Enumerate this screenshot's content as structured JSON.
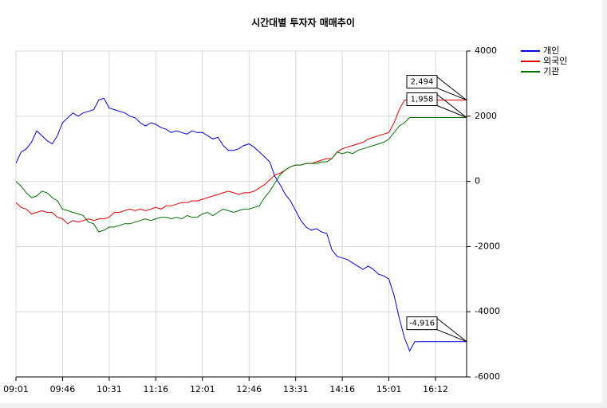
{
  "chart_data": {
    "type": "line",
    "title": "시간대별 투자자 매매추이",
    "xlim": [
      0,
      87
    ],
    "xticks": [
      {
        "value": 0,
        "label": "09:01"
      },
      {
        "value": 9,
        "label": "09:46"
      },
      {
        "value": 18,
        "label": "10:31"
      },
      {
        "value": 27,
        "label": "11:16"
      },
      {
        "value": 36,
        "label": "12:01"
      },
      {
        "value": 45,
        "label": "12:46"
      },
      {
        "value": 54,
        "label": "13:31"
      },
      {
        "value": 63,
        "label": "14:16"
      },
      {
        "value": 72,
        "label": "15:01"
      },
      {
        "value": 81,
        "label": "16:12"
      }
    ],
    "ylim": [
      -6000,
      4000
    ],
    "yticks": [
      -6000,
      -4000,
      -2000,
      0,
      2000,
      4000
    ],
    "grid": true,
    "legend": "top-right",
    "series": [
      {
        "name": "개인",
        "color": "#0000e0",
        "end_label": "-4,916",
        "values": [
          560,
          900,
          1000,
          1200,
          1550,
          1400,
          1250,
          1150,
          1400,
          1800,
          1950,
          2100,
          2000,
          2100,
          2150,
          2200,
          2500,
          2550,
          2250,
          2200,
          2150,
          2100,
          2000,
          1950,
          1800,
          1700,
          1800,
          1750,
          1650,
          1600,
          1500,
          1550,
          1500,
          1450,
          1550,
          1500,
          1500,
          1400,
          1300,
          1350,
          1100,
          950,
          950,
          1000,
          1100,
          1150,
          1050,
          900,
          750,
          600,
          150,
          -100,
          -400,
          -600,
          -900,
          -1200,
          -1400,
          -1500,
          -1450,
          -1550,
          -1600,
          -2100,
          -2300,
          -2350,
          -2400,
          -2500,
          -2600,
          -2700,
          -2600,
          -2700,
          -2850,
          -2900,
          -3000,
          -3500,
          -4200,
          -4800,
          -5200,
          -4916,
          -4916,
          -4916,
          -4916,
          -4916,
          -4916,
          -4916,
          -4916,
          -4916,
          -4916,
          -4916
        ]
      },
      {
        "name": "외국인",
        "color": "#e00000",
        "end_label": "2,494",
        "values": [
          -650,
          -800,
          -850,
          -1000,
          -950,
          -900,
          -950,
          -950,
          -1100,
          -1150,
          -1300,
          -1200,
          -1250,
          -1200,
          -1150,
          -1200,
          -1150,
          -1150,
          -1100,
          -950,
          -950,
          -900,
          -850,
          -900,
          -850,
          -900,
          -850,
          -800,
          -850,
          -750,
          -750,
          -700,
          -650,
          -650,
          -600,
          -600,
          -550,
          -500,
          -450,
          -400,
          -350,
          -300,
          -350,
          -400,
          -350,
          -350,
          -300,
          -200,
          -100,
          50,
          200,
          250,
          350,
          450,
          500,
          500,
          550,
          550,
          600,
          650,
          700,
          700,
          900,
          1000,
          1050,
          1100,
          1150,
          1200,
          1300,
          1350,
          1400,
          1450,
          1500,
          1800,
          2200,
          2494,
          2494,
          2494,
          2494,
          2494,
          2494,
          2494,
          2494,
          2494,
          2494,
          2494,
          2494,
          2494
        ]
      },
      {
        "name": "기관",
        "color": "#007000",
        "end_label": "1,958",
        "values": [
          0,
          -150,
          -350,
          -500,
          -450,
          -300,
          -350,
          -500,
          -600,
          -850,
          -900,
          -950,
          -1000,
          -1050,
          -1250,
          -1300,
          -1550,
          -1500,
          -1400,
          -1400,
          -1350,
          -1300,
          -1300,
          -1250,
          -1200,
          -1150,
          -1200,
          -1150,
          -1100,
          -1100,
          -1150,
          -1100,
          -1150,
          -1050,
          -1100,
          -1100,
          -1000,
          -950,
          -1050,
          -950,
          -850,
          -900,
          -950,
          -900,
          -850,
          -850,
          -800,
          -750,
          -500,
          -300,
          -50,
          200,
          350,
          450,
          500,
          500,
          550,
          550,
          550,
          600,
          600,
          700,
          900,
          850,
          900,
          850,
          950,
          1000,
          1050,
          1100,
          1150,
          1200,
          1300,
          1500,
          1700,
          1800,
          1958,
          1958,
          1958,
          1958,
          1958,
          1958,
          1958,
          1958,
          1958,
          1958,
          1958,
          1958
        ]
      }
    ]
  }
}
